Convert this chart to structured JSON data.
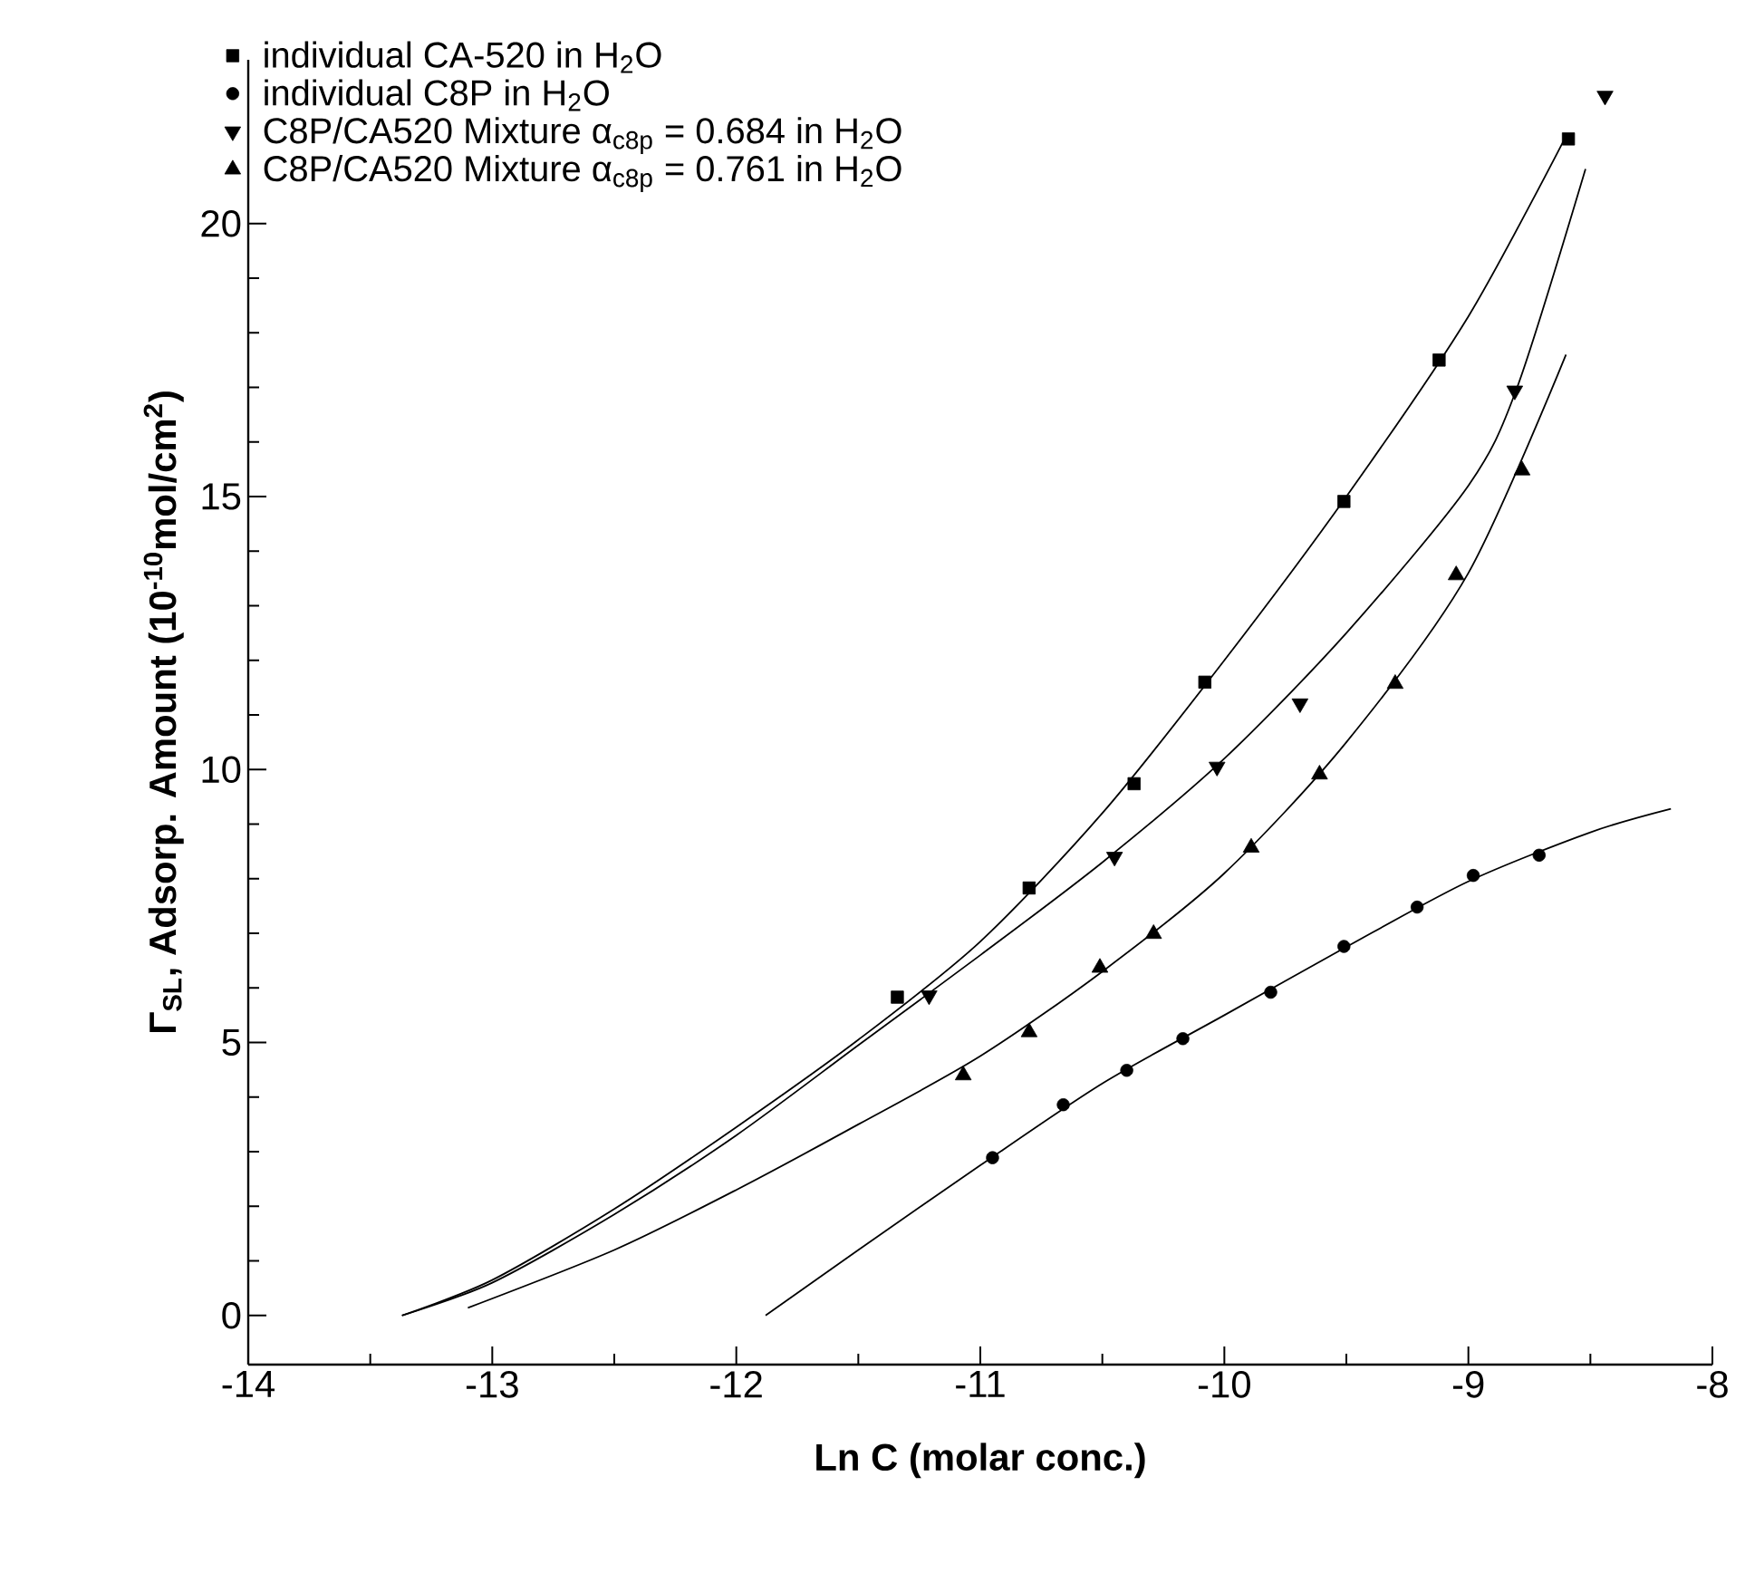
{
  "chart_data": {
    "type": "scatter",
    "xlabel": "Ln C (molar conc.)",
    "ylabel": "Γ$_{SL}$, Adsorp. Amount (10$^{-10}$mol/cm$^{2}$)",
    "xlim": [
      -14,
      -8
    ],
    "ylim": [
      -0.9,
      23
    ],
    "xticks": [
      -14,
      -13,
      -12,
      -11,
      -10,
      -9,
      -8
    ],
    "yticks": [
      0,
      5,
      10,
      15,
      20
    ],
    "legend": "top left",
    "grid": false,
    "series": [
      {
        "name": "individual CA-520 in H$_{2}$O",
        "marker": "square",
        "color": "#000000",
        "x": [
          -11.34,
          -10.8,
          -10.37,
          -10.08,
          -9.51,
          -9.12,
          -8.59
        ],
        "values": [
          5.83,
          7.83,
          9.74,
          11.6,
          14.91,
          17.5,
          21.55
        ]
      },
      {
        "name": "individual C8P in H$_{2}$O",
        "marker": "circle",
        "color": "#000000",
        "x": [
          -10.95,
          -10.66,
          -10.4,
          -10.17,
          -9.81,
          -9.51,
          -9.21,
          -8.98,
          -8.71
        ],
        "values": [
          2.89,
          3.86,
          4.49,
          5.07,
          5.92,
          6.76,
          7.48,
          8.06,
          8.43
        ]
      },
      {
        "name": "C8P/CA520 Mixture α$_{c8p}$ = 0.684 in H$_{2}$O",
        "marker": "triangle-down",
        "color": "#000000",
        "x": [
          -11.21,
          -10.45,
          -10.03,
          -9.69,
          -8.81,
          -8.44
        ],
        "values": [
          5.86,
          8.4,
          10.05,
          11.21,
          16.94,
          22.34
        ]
      },
      {
        "name": "C8P/CA520 Mixture α$_{c8p}$ = 0.761 in H$_{2}$O",
        "marker": "triangle",
        "color": "#000000",
        "x": [
          -11.07,
          -10.8,
          -10.51,
          -10.29,
          -9.89,
          -9.61,
          -9.3,
          -9.05,
          -8.78
        ],
        "values": [
          4.4,
          5.19,
          6.37,
          6.99,
          8.57,
          9.91,
          11.57,
          13.56,
          15.48
        ]
      },
      {
        "type": "line",
        "marker": "none",
        "color": "#000000",
        "x": [
          -13.37,
          -13.0,
          -12.5,
          -12.0,
          -11.5,
          -11.0,
          -10.5,
          -10.0,
          -9.5,
          -9.0,
          -8.6
        ],
        "values": [
          0,
          0.65,
          1.95,
          3.45,
          5.05,
          6.85,
          9.2,
          12.0,
          15.0,
          18.3,
          21.6
        ]
      },
      {
        "type": "line",
        "marker": "none",
        "color": "#000000",
        "x": [
          -11.88,
          -11.5,
          -11.0,
          -10.5,
          -10.0,
          -9.5,
          -9.0,
          -8.5,
          -8.17
        ],
        "values": [
          0,
          1.2,
          2.75,
          4.25,
          5.5,
          6.75,
          7.95,
          8.85,
          9.28
        ]
      },
      {
        "type": "line",
        "marker": "none",
        "color": "#000000",
        "x": [
          -13.37,
          -13.0,
          -12.5,
          -12.0,
          -11.5,
          -11.0,
          -10.5,
          -10.0,
          -9.5,
          -9.0,
          -8.8,
          -8.52
        ],
        "values": [
          0,
          0.6,
          1.85,
          3.3,
          4.95,
          6.6,
          8.3,
          10.2,
          12.5,
          15.2,
          17.0,
          21.0
        ]
      },
      {
        "type": "line",
        "marker": "none",
        "color": "#000000",
        "x": [
          -13.1,
          -12.5,
          -12.0,
          -11.5,
          -11.0,
          -10.5,
          -10.0,
          -9.5,
          -9.0,
          -8.6
        ],
        "values": [
          0.14,
          1.2,
          2.3,
          3.5,
          4.75,
          6.3,
          8.1,
          10.5,
          13.6,
          17.6
        ]
      }
    ]
  }
}
